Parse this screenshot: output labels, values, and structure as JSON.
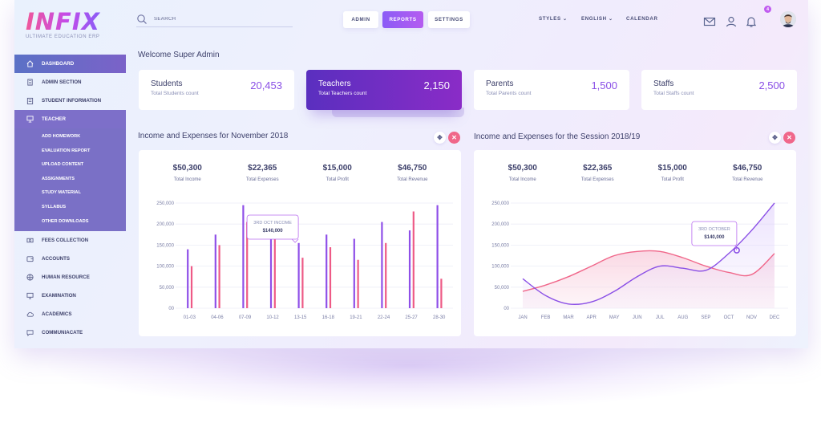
{
  "brand": {
    "name": "INFIX",
    "tagline": "ULTIMATE EDUCATION ERP"
  },
  "search": {
    "placeholder": "SEARCH"
  },
  "topnav": {
    "buttons": [
      {
        "label": "ADMIN"
      },
      {
        "label": "REPORTS"
      },
      {
        "label": "SETTINGS"
      }
    ],
    "styles_label": "STYLES",
    "language_label": "ENGLISH",
    "calendar_label": "CALENDAR",
    "notification_count": "4"
  },
  "sidebar": {
    "items": [
      {
        "label": "DASHBOARD",
        "icon": "home-icon"
      },
      {
        "label": "ADMIN SECTION",
        "icon": "building-icon"
      },
      {
        "label": "STUDENT INFORMATION",
        "icon": "clipboard-icon"
      },
      {
        "label": "TEACHER",
        "icon": "presentation-icon"
      },
      {
        "label": "FEES COLLECTION",
        "icon": "money-icon"
      },
      {
        "label": "ACCOUNTS",
        "icon": "wallet-icon"
      },
      {
        "label": "HUMAN RESOURCE",
        "icon": "globe-icon"
      },
      {
        "label": "EXAMINATION",
        "icon": "monitor-icon"
      },
      {
        "label": "ACADEMICS",
        "icon": "cloud-icon"
      },
      {
        "label": "COMMUNIACATE",
        "icon": "chat-icon"
      }
    ],
    "teacher_submenu": [
      "ADD HOMEWORK",
      "EVALUATION REPORT",
      "UPLOAD CONTENT",
      "ASSIGNMENTS",
      "STUDY MATERIAL",
      "SYLLABUS",
      "OTHER DOWNLOADS"
    ]
  },
  "welcome": "Welcome Super Admin",
  "cards": [
    {
      "title": "Students",
      "subtitle": "Total Students count",
      "value": "20,453"
    },
    {
      "title": "Teachers",
      "subtitle": "Total Teachers count",
      "value": "2,150"
    },
    {
      "title": "Parents",
      "subtitle": "Total Parents count",
      "value": "1,500"
    },
    {
      "title": "Staffs",
      "subtitle": "Total Staffs count",
      "value": "2,500"
    }
  ],
  "sections": [
    {
      "title": "Income and Expenses for November 2018",
      "stats": [
        {
          "value": "$50,300",
          "label": "Total Income"
        },
        {
          "value": "$22,365",
          "label": "Total Expenses"
        },
        {
          "value": "$15,000",
          "label": "Total Profit"
        },
        {
          "value": "$46,750",
          "label": "Total Revenue"
        }
      ]
    },
    {
      "title": "Income and Expenses for the Session 2018/19",
      "stats": [
        {
          "value": "$50,300",
          "label": "Total Income"
        },
        {
          "value": "$22,365",
          "label": "Total Expenses"
        },
        {
          "value": "$15,000",
          "label": "Total Profit"
        },
        {
          "value": "$46,750",
          "label": "Total Revenue"
        }
      ]
    }
  ],
  "colors": {
    "purple": "#8a4fe6",
    "pink": "#f0678a",
    "violet_bar": "#8f4fe8",
    "pink_bar": "#ee5a86"
  },
  "chart_data": [
    {
      "type": "bar",
      "categories": [
        "01-03",
        "04-06",
        "07-09",
        "10-12",
        "13-15",
        "16-18",
        "19-21",
        "22-24",
        "25-27",
        "28-30"
      ],
      "series": [
        {
          "values": [
            140000,
            175000,
            245000,
            165000,
            155000,
            175000,
            165000,
            205000,
            185000,
            245000
          ]
        },
        {
          "values": [
            100000,
            150000,
            205000,
            168000,
            120000,
            145000,
            115000,
            155000,
            230000,
            70000
          ]
        }
      ],
      "ylim": [
        0,
        250000
      ],
      "yticks": [
        "00",
        "50,000",
        "100,000",
        "150,000",
        "200,000",
        "250,000"
      ],
      "annotation": {
        "label": "3RD OCT INCOME",
        "value": "$140,000"
      },
      "grid": true
    },
    {
      "type": "area",
      "categories": [
        "JAN",
        "FEB",
        "MAR",
        "APR",
        "MAY",
        "JUN",
        "JUL",
        "AUG",
        "SEP",
        "OCT",
        "NOV",
        "DEC"
      ],
      "series": [
        {
          "values": [
            40000,
            55000,
            75000,
            100000,
            125000,
            135000,
            135000,
            120000,
            100000,
            85000,
            80000,
            130000
          ]
        },
        {
          "values": [
            70000,
            30000,
            10000,
            15000,
            40000,
            75000,
            100000,
            95000,
            90000,
            130000,
            185000,
            250000
          ]
        }
      ],
      "ylim": [
        0,
        250000
      ],
      "yticks": [
        "00",
        "50,000",
        "100,000",
        "150,000",
        "200,000",
        "250,000"
      ],
      "annotation": {
        "label": "3RD OCTOBER",
        "value": "$140,000"
      },
      "grid": true
    }
  ]
}
